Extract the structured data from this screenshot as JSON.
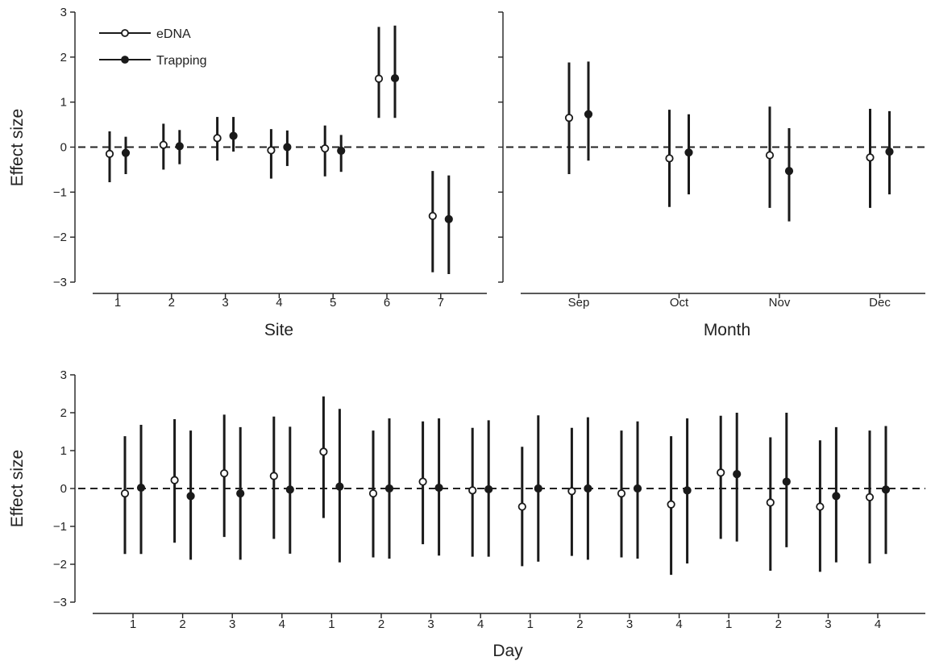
{
  "chart_data": [
    {
      "id": "site",
      "type": "scatter",
      "xlabel": "Site",
      "ylabel": "Effect size",
      "ylim": [
        -3,
        3
      ],
      "yticks": [
        -3,
        -2,
        -1,
        0,
        1,
        2,
        3
      ],
      "ytick_labels": [
        "−3",
        "−2",
        "−1",
        "0",
        "1",
        "2",
        "3"
      ],
      "categories": [
        "1",
        "2",
        "3",
        "4",
        "5",
        "6",
        "7"
      ],
      "reference_line": 0,
      "legend": {
        "entries": [
          "eDNA",
          "Trapping"
        ],
        "position": "top-left"
      },
      "series": [
        {
          "name": "eDNA",
          "marker": "open-circle",
          "values": [
            -0.15,
            0.05,
            0.2,
            -0.07,
            -0.03,
            1.52,
            -1.53
          ],
          "lower": [
            -0.78,
            -0.5,
            -0.3,
            -0.7,
            -0.65,
            0.65,
            -2.78
          ],
          "upper": [
            0.35,
            0.52,
            0.67,
            0.4,
            0.48,
            2.67,
            -0.53
          ]
        },
        {
          "name": "Trapping",
          "marker": "filled-circle",
          "values": [
            -0.13,
            0.02,
            0.25,
            0.0,
            -0.08,
            1.53,
            -1.6
          ],
          "lower": [
            -0.6,
            -0.38,
            -0.1,
            -0.42,
            -0.55,
            0.65,
            -2.82
          ],
          "upper": [
            0.23,
            0.38,
            0.67,
            0.37,
            0.27,
            2.7,
            -0.63
          ]
        }
      ]
    },
    {
      "id": "month",
      "type": "scatter",
      "xlabel": "Month",
      "ylabel": "",
      "ylim": [
        -3,
        3
      ],
      "yticks": [
        -3,
        -2,
        -1,
        0,
        1,
        2,
        3
      ],
      "categories": [
        "Sep",
        "Oct",
        "Nov",
        "Dec"
      ],
      "reference_line": 0,
      "series": [
        {
          "name": "eDNA",
          "marker": "open-circle",
          "values": [
            0.65,
            -0.25,
            -0.18,
            -0.23
          ],
          "lower": [
            -0.6,
            -1.33,
            -1.35,
            -1.35
          ],
          "upper": [
            1.88,
            0.83,
            0.9,
            0.85
          ]
        },
        {
          "name": "Trapping",
          "marker": "filled-circle",
          "values": [
            0.73,
            -0.12,
            -0.53,
            -0.1
          ],
          "lower": [
            -0.3,
            -1.05,
            -1.65,
            -1.05
          ],
          "upper": [
            1.9,
            0.73,
            0.42,
            0.8
          ]
        }
      ]
    },
    {
      "id": "day",
      "type": "scatter",
      "xlabel": "Day",
      "ylabel": "Effect size",
      "ylim": [
        -3,
        3
      ],
      "yticks": [
        -3,
        -2,
        -1,
        0,
        1,
        2,
        3
      ],
      "ytick_labels": [
        "−3",
        "−2",
        "−1",
        "0",
        "1",
        "2",
        "3"
      ],
      "categories": [
        "1",
        "2",
        "3",
        "4",
        "1",
        "2",
        "3",
        "4",
        "1",
        "2",
        "3",
        "4",
        "1",
        "2",
        "3",
        "4"
      ],
      "reference_line": 0,
      "series": [
        {
          "name": "eDNA",
          "marker": "open-circle",
          "values": [
            -0.13,
            0.22,
            0.4,
            0.33,
            0.97,
            -0.13,
            0.18,
            -0.05,
            -0.48,
            -0.07,
            -0.13,
            -0.42,
            0.42,
            -0.37,
            -0.48,
            -0.23
          ],
          "lower": [
            -1.73,
            -1.43,
            -1.28,
            -1.33,
            -0.78,
            -1.82,
            -1.47,
            -1.8,
            -2.05,
            -1.78,
            -1.82,
            -2.28,
            -1.33,
            -2.17,
            -2.2,
            -1.98
          ],
          "upper": [
            1.38,
            1.83,
            1.95,
            1.9,
            2.43,
            1.53,
            1.77,
            1.6,
            1.1,
            1.6,
            1.53,
            1.38,
            1.92,
            1.35,
            1.27,
            1.53
          ]
        },
        {
          "name": "Trapping",
          "marker": "filled-circle",
          "values": [
            0.02,
            -0.2,
            -0.13,
            -0.03,
            0.05,
            0.0,
            0.02,
            -0.02,
            0.0,
            0.0,
            0.0,
            -0.05,
            0.38,
            0.18,
            -0.2,
            -0.03
          ],
          "lower": [
            -1.73,
            -1.88,
            -1.88,
            -1.72,
            -1.95,
            -1.85,
            -1.77,
            -1.8,
            -1.93,
            -1.88,
            -1.85,
            -1.98,
            -1.4,
            -1.55,
            -1.95,
            -1.73
          ],
          "upper": [
            1.68,
            1.53,
            1.62,
            1.63,
            2.1,
            1.85,
            1.85,
            1.8,
            1.93,
            1.88,
            1.77,
            1.85,
            2.0,
            2.0,
            1.62,
            1.65
          ]
        }
      ]
    }
  ]
}
